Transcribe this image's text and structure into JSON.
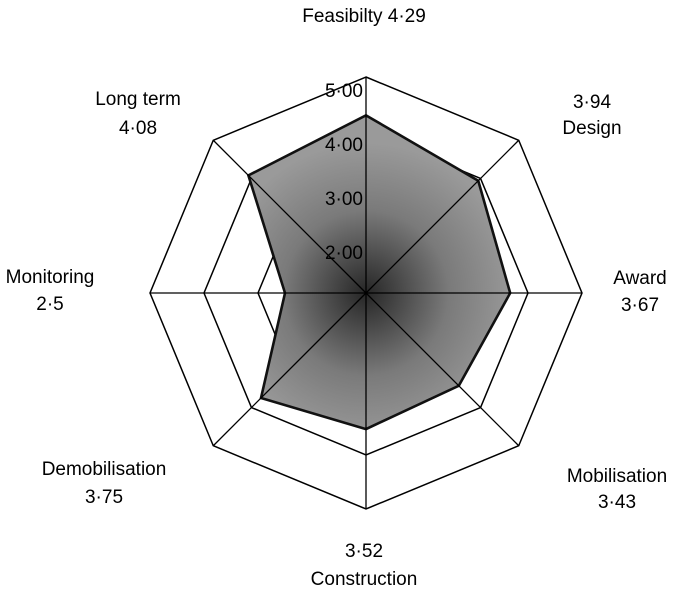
{
  "chart_data": {
    "type": "radar",
    "title": "",
    "scale": {
      "min": 1.0,
      "max": 5.0
    },
    "ticks": [
      "2·00",
      "3·00",
      "4·00",
      "5·00"
    ],
    "tick_values": [
      2,
      3,
      4,
      5
    ],
    "axes": [
      {
        "name": "Feasibilty",
        "value": 4.29,
        "value_label": "4·29"
      },
      {
        "name": "Design",
        "value": 3.94,
        "value_label": "3·94"
      },
      {
        "name": "Award",
        "value": 3.67,
        "value_label": "3·67"
      },
      {
        "name": "Mobilisation",
        "value": 3.43,
        "value_label": "3·43"
      },
      {
        "name": "Construction",
        "value": 3.52,
        "value_label": "3·52"
      },
      {
        "name": "Demobilisation",
        "value": 3.75,
        "value_label": "3·75"
      },
      {
        "name": "Monitoring",
        "value": 2.5,
        "value_label": "2·5"
      },
      {
        "name": "Long term",
        "value": 4.08,
        "value_label": "4·08"
      }
    ],
    "colors": {
      "grid": "#000000",
      "fill": "#9a9a9a",
      "fill_center": "#262626",
      "outline": "#111111"
    }
  }
}
